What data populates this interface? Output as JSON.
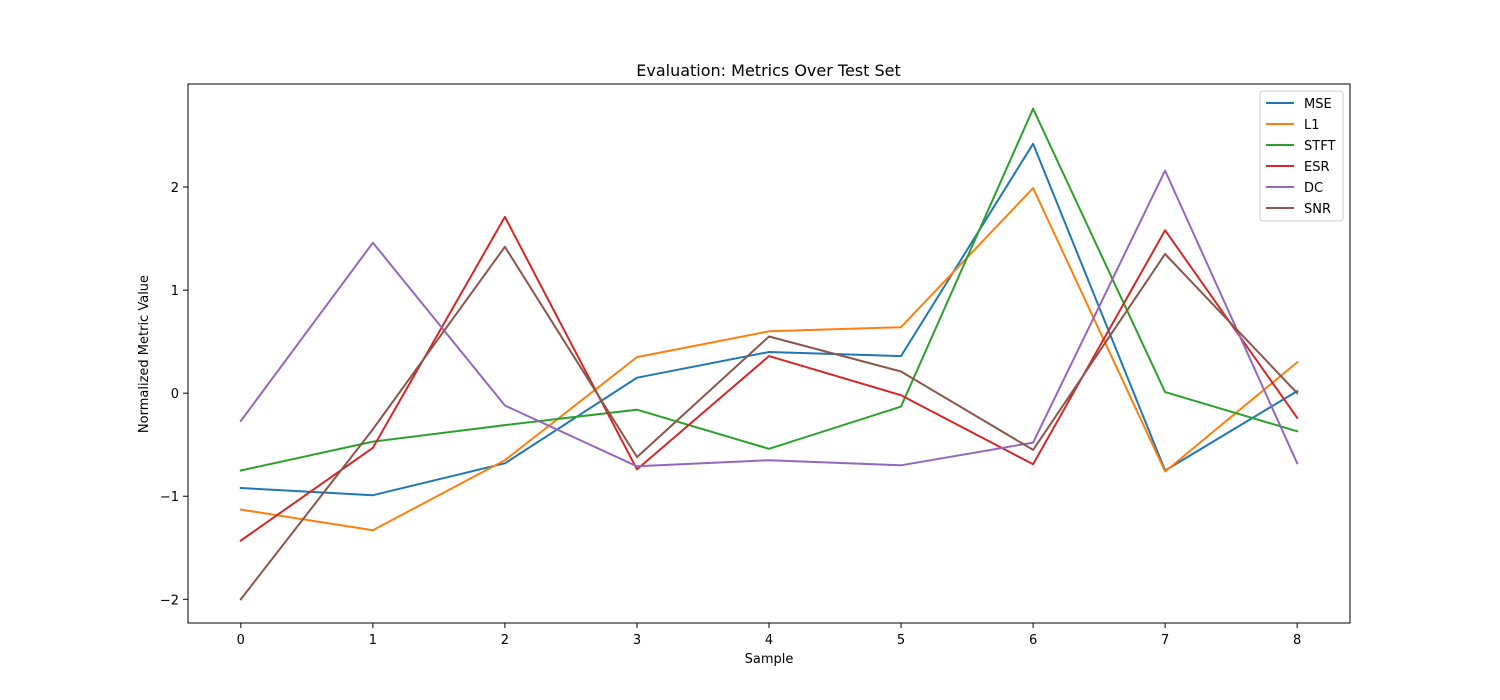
{
  "chart_data": {
    "type": "line",
    "title": "Evaluation: Metrics Over Test Set",
    "xlabel": "Sample",
    "ylabel": "Normalized Metric Value",
    "x": [
      0,
      1,
      2,
      3,
      4,
      5,
      6,
      7,
      8
    ],
    "xlim": [
      -0.4,
      8.4
    ],
    "ylim": [
      -2.23,
      3.0
    ],
    "xticks": [
      0,
      1,
      2,
      3,
      4,
      5,
      6,
      7,
      8
    ],
    "xtick_labels": [
      "0",
      "1",
      "2",
      "3",
      "4",
      "5",
      "6",
      "7",
      "8"
    ],
    "yticks": [
      -2,
      -1,
      0,
      1,
      2
    ],
    "ytick_labels": [
      "−2",
      "−1",
      "0",
      "1",
      "2"
    ],
    "grid": false,
    "legend_position": "top-right",
    "series": [
      {
        "name": "MSE",
        "color": "#1f77b4",
        "values": [
          -0.92,
          -0.99,
          -0.68,
          0.15,
          0.4,
          0.36,
          2.42,
          -0.75,
          0.02
        ]
      },
      {
        "name": "L1",
        "color": "#ff7f0e",
        "values": [
          -1.13,
          -1.33,
          -0.65,
          0.35,
          0.6,
          0.64,
          1.99,
          -0.76,
          0.3
        ]
      },
      {
        "name": "STFT",
        "color": "#2ca02c",
        "values": [
          -0.75,
          -0.47,
          -0.31,
          -0.16,
          -0.54,
          -0.13,
          2.76,
          0.01,
          -0.37
        ]
      },
      {
        "name": "ESR",
        "color": "#d62728",
        "values": [
          -1.43,
          -0.53,
          1.71,
          -0.74,
          0.36,
          -0.02,
          -0.69,
          1.58,
          -0.24
        ]
      },
      {
        "name": "DC",
        "color": "#9467bd",
        "values": [
          -0.27,
          1.46,
          -0.12,
          -0.71,
          -0.65,
          -0.7,
          -0.48,
          2.16,
          -0.68
        ]
      },
      {
        "name": "SNR",
        "color": "#8c564b",
        "values": [
          -2.0,
          -0.35,
          1.42,
          -0.62,
          0.55,
          0.21,
          -0.55,
          1.35,
          0.0
        ]
      }
    ]
  }
}
